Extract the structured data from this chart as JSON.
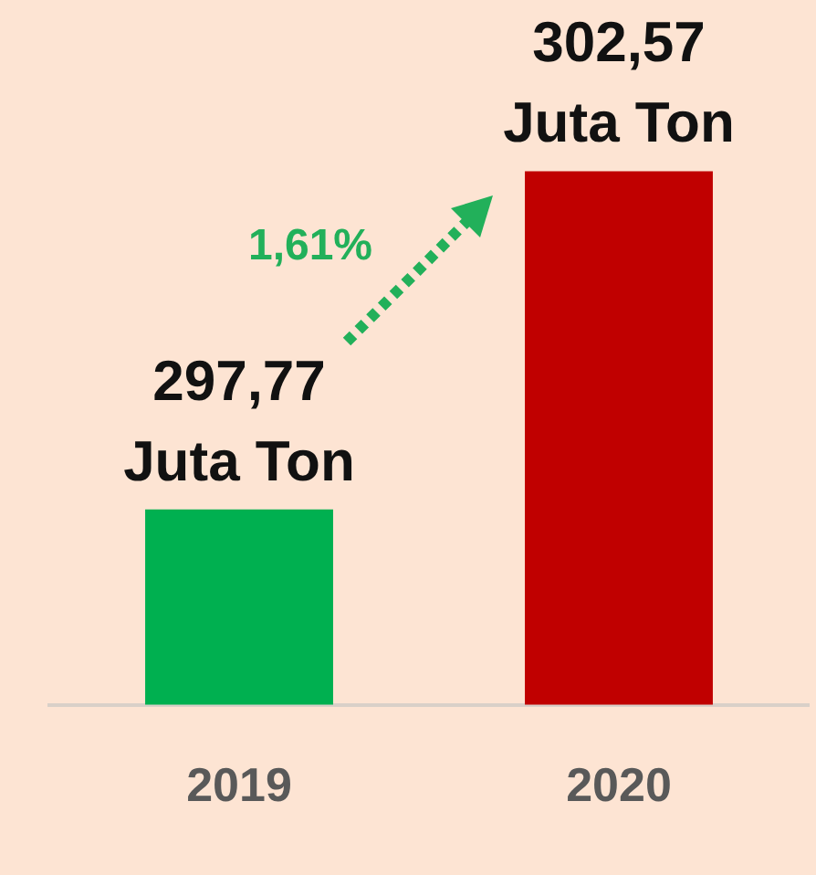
{
  "chart_data": {
    "type": "bar",
    "categories": [
      "2019",
      "2020"
    ],
    "values": [
      297.77,
      302.57
    ],
    "colors": [
      "#00b050",
      "#c00000"
    ],
    "value_labels": [
      "297,77 Juta Ton",
      "302,57 Juta Ton"
    ],
    "ylim": [
      295,
      305
    ],
    "tick_labels": "x",
    "grid": false,
    "legend": false,
    "annotations": [
      "1,61%"
    ]
  }
}
